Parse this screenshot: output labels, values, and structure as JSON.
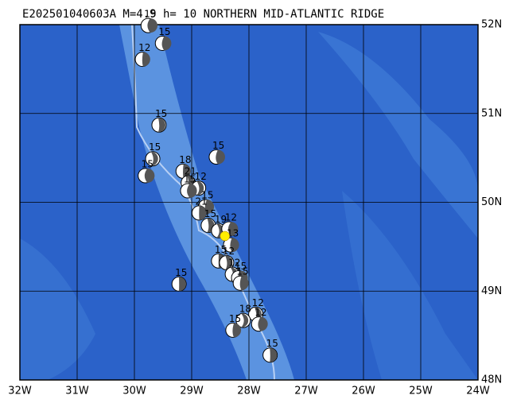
{
  "map": {
    "title": "E202501040603A M=4.9 h= 10 NORTHERN MID-ATLANTIC RIDGE",
    "xlim": [
      -32,
      -24
    ],
    "ylim": [
      48,
      52
    ],
    "xticks": [
      {
        "value": -32,
        "label": "32W"
      },
      {
        "value": -31,
        "label": "31W"
      },
      {
        "value": -30,
        "label": "30W"
      },
      {
        "value": -29,
        "label": "29W"
      },
      {
        "value": -28,
        "label": "28W"
      },
      {
        "value": -27,
        "label": "27W"
      },
      {
        "value": -26,
        "label": "26W"
      },
      {
        "value": -25,
        "label": "25W"
      },
      {
        "value": -24,
        "label": "24W"
      }
    ],
    "yticks": [
      {
        "value": 48,
        "label": "48N"
      },
      {
        "value": 49,
        "label": "49N"
      },
      {
        "value": 50,
        "label": "50N"
      },
      {
        "value": 51,
        "label": "51N"
      },
      {
        "value": 52,
        "label": "52N"
      }
    ],
    "main_event": {
      "lon": -28.42,
      "lat": 49.62,
      "color": "#ffee00"
    },
    "events": [
      {
        "lon": -29.76,
        "lat": 51.99,
        "depth": 15
      },
      {
        "lon": -29.51,
        "lat": 51.79,
        "depth": 15
      },
      {
        "lon": -29.86,
        "lat": 51.61,
        "depth": 12
      },
      {
        "lon": -29.57,
        "lat": 50.87,
        "depth": 15
      },
      {
        "lon": -29.68,
        "lat": 50.49,
        "depth": 15
      },
      {
        "lon": -29.81,
        "lat": 50.3,
        "depth": 15
      },
      {
        "lon": -28.57,
        "lat": 50.51,
        "depth": 15
      },
      {
        "lon": -29.15,
        "lat": 50.35,
        "depth": 18
      },
      {
        "lon": -29.06,
        "lat": 50.22,
        "depth": 21
      },
      {
        "lon": -28.88,
        "lat": 50.16,
        "depth": 12
      },
      {
        "lon": -29.07,
        "lat": 50.13,
        "depth": 15
      },
      {
        "lon": -28.76,
        "lat": 49.95,
        "depth": 15
      },
      {
        "lon": -28.87,
        "lat": 49.88,
        "depth": 21
      },
      {
        "lon": -28.71,
        "lat": 49.74,
        "depth": 15
      },
      {
        "lon": -28.53,
        "lat": 49.68,
        "depth": 19
      },
      {
        "lon": -28.35,
        "lat": 49.7,
        "depth": 12
      },
      {
        "lon": -28.32,
        "lat": 49.52,
        "depth": 13
      },
      {
        "lon": -28.53,
        "lat": 49.34,
        "depth": 15
      },
      {
        "lon": -28.39,
        "lat": 49.32,
        "depth": 12
      },
      {
        "lon": -28.29,
        "lat": 49.19,
        "depth": 12
      },
      {
        "lon": -28.18,
        "lat": 49.15,
        "depth": 15
      },
      {
        "lon": -28.15,
        "lat": 49.09,
        "depth": 15
      },
      {
        "lon": -29.22,
        "lat": 49.08,
        "depth": 15
      },
      {
        "lon": -27.88,
        "lat": 48.74,
        "depth": 12
      },
      {
        "lon": -28.1,
        "lat": 48.67,
        "depth": 18
      },
      {
        "lon": -27.83,
        "lat": 48.63,
        "depth": 12
      },
      {
        "lon": -28.28,
        "lat": 48.56,
        "depth": 15
      },
      {
        "lon": -27.63,
        "lat": 48.28,
        "depth": 15
      }
    ]
  }
}
